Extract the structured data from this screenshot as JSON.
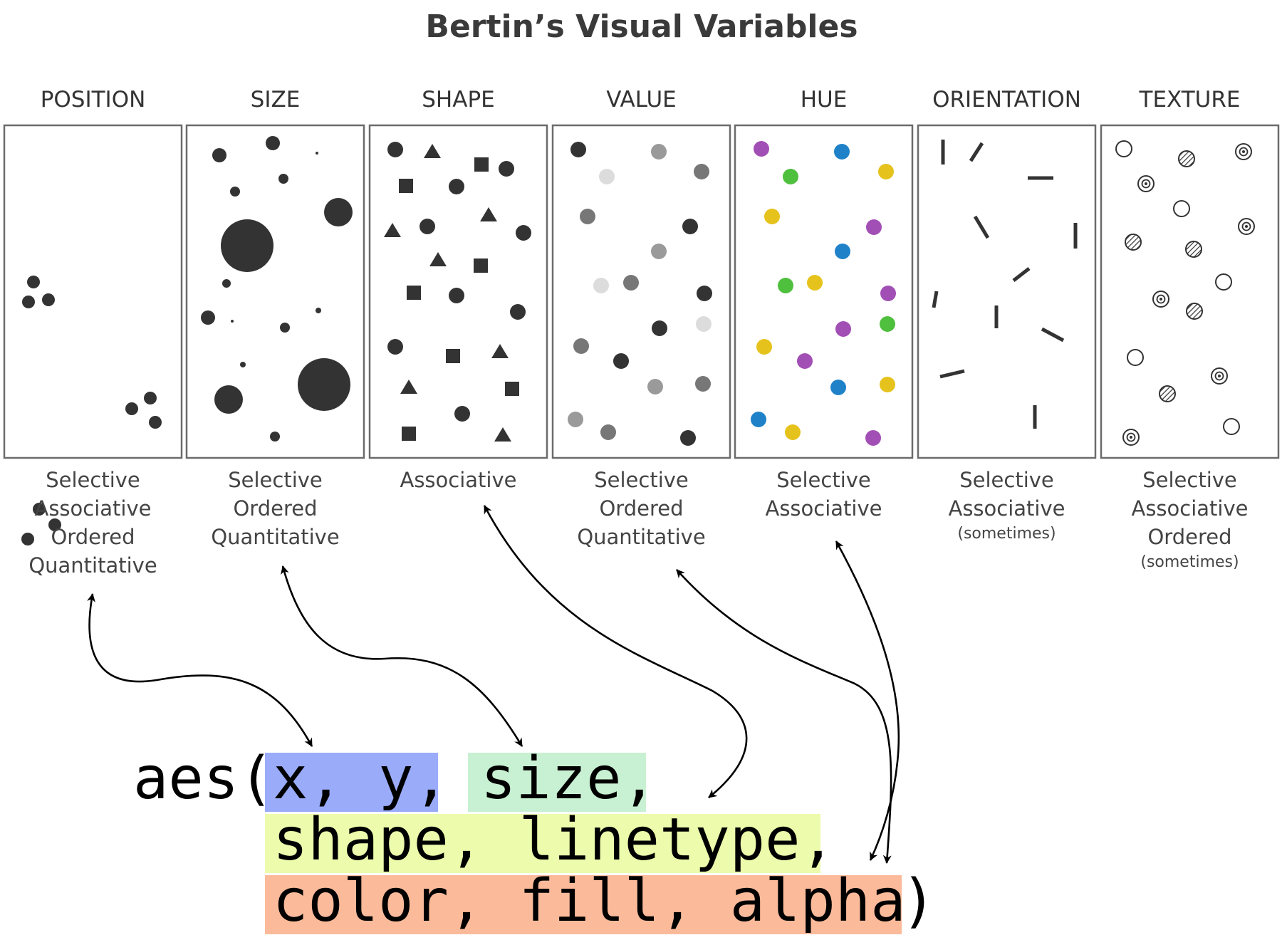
{
  "title": "Bertin’s Visual Variables",
  "variables": [
    {
      "key": "position",
      "label": "POSITION",
      "properties": [
        "Selective",
        "Associative",
        "Ordered",
        "Quantitative"
      ],
      "note": ""
    },
    {
      "key": "size",
      "label": "SIZE",
      "properties": [
        "Selective",
        "Ordered",
        "Quantitative"
      ],
      "note": ""
    },
    {
      "key": "shape",
      "label": "SHAPE",
      "properties": [
        "Associative"
      ],
      "note": ""
    },
    {
      "key": "value",
      "label": "VALUE",
      "properties": [
        "Selective",
        "Ordered",
        "Quantitative"
      ],
      "note": ""
    },
    {
      "key": "hue",
      "label": "HUE",
      "properties": [
        "Selective",
        "Associative"
      ],
      "note": ""
    },
    {
      "key": "orientation",
      "label": "ORIENTATION",
      "properties": [
        "Selective",
        "Associative"
      ],
      "note": "(sometimes)"
    },
    {
      "key": "texture",
      "label": "TEXTURE",
      "properties": [
        "Selective",
        "Associative",
        "Ordered"
      ],
      "note": "(sometimes)"
    }
  ],
  "code": {
    "prefix": "aes(",
    "line1": [
      {
        "text": "x, y,",
        "group": "position"
      },
      {
        "text": "size,",
        "group": "size"
      }
    ],
    "line2": [
      {
        "text": "shape, linetype,",
        "group": "shape"
      }
    ],
    "line3": [
      {
        "text": "color, fill, alpha",
        "group": "color"
      }
    ],
    "suffix": ")"
  },
  "highlight_colors": {
    "position": "#9aabfa",
    "size": "#c8f0d2",
    "shape": "#ecfbac",
    "color": "#fbbb9b"
  },
  "mark_colors": {
    "dark": "#333333",
    "purple": "#a24fb5",
    "blue": "#1f82c9",
    "green": "#4fbf3e",
    "yellow": "#e6c21c"
  }
}
